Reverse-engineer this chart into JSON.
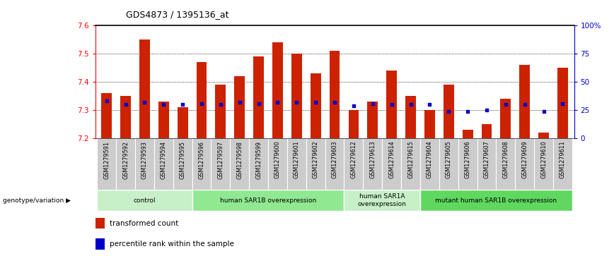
{
  "title": "GDS4873 / 1395136_at",
  "samples": [
    "GSM1279591",
    "GSM1279592",
    "GSM1279593",
    "GSM1279594",
    "GSM1279595",
    "GSM1279596",
    "GSM1279597",
    "GSM1279598",
    "GSM1279599",
    "GSM1279600",
    "GSM1279601",
    "GSM1279602",
    "GSM1279603",
    "GSM1279612",
    "GSM1279613",
    "GSM1279614",
    "GSM1279615",
    "GSM1279604",
    "GSM1279605",
    "GSM1279606",
    "GSM1279607",
    "GSM1279608",
    "GSM1279609",
    "GSM1279610",
    "GSM1279611"
  ],
  "transformed_count": [
    7.36,
    7.35,
    7.55,
    7.33,
    7.31,
    7.47,
    7.39,
    7.42,
    7.49,
    7.54,
    7.5,
    7.43,
    7.51,
    7.3,
    7.33,
    7.44,
    7.35,
    7.3,
    7.39,
    7.23,
    7.25,
    7.34,
    7.46,
    7.22,
    7.45
  ],
  "percentile_rank": [
    33,
    30,
    32,
    30,
    30,
    31,
    30,
    32,
    31,
    32,
    32,
    32,
    32,
    29,
    31,
    30,
    30,
    30,
    24,
    24,
    25,
    30,
    30,
    24,
    31
  ],
  "groups": [
    {
      "label": "control",
      "start": 0,
      "end": 5,
      "color": "#c8f0c8"
    },
    {
      "label": "human SAR1B overexpression",
      "start": 5,
      "end": 13,
      "color": "#90e890"
    },
    {
      "label": "human SAR1A\noverexpression",
      "start": 13,
      "end": 17,
      "color": "#c8f0c8"
    },
    {
      "label": "mutant human SAR1B overexpression",
      "start": 17,
      "end": 25,
      "color": "#60d860"
    }
  ],
  "ylim": [
    7.2,
    7.6
  ],
  "ylim_right": [
    0,
    100
  ],
  "yticks_left": [
    7.2,
    7.3,
    7.4,
    7.5,
    7.6
  ],
  "yticks_right": [
    0,
    25,
    50,
    75,
    100
  ],
  "bar_color": "#cc2200",
  "dot_color": "#0000cc",
  "bar_bottom": 7.2,
  "legend_tc": "transformed count",
  "legend_pr": "percentile rank within the sample",
  "ylabel_right_color": "#0000cc",
  "gridline_color": "#000000",
  "group_label_y": "genotype/variation",
  "xlabel_bg": "#cccccc"
}
